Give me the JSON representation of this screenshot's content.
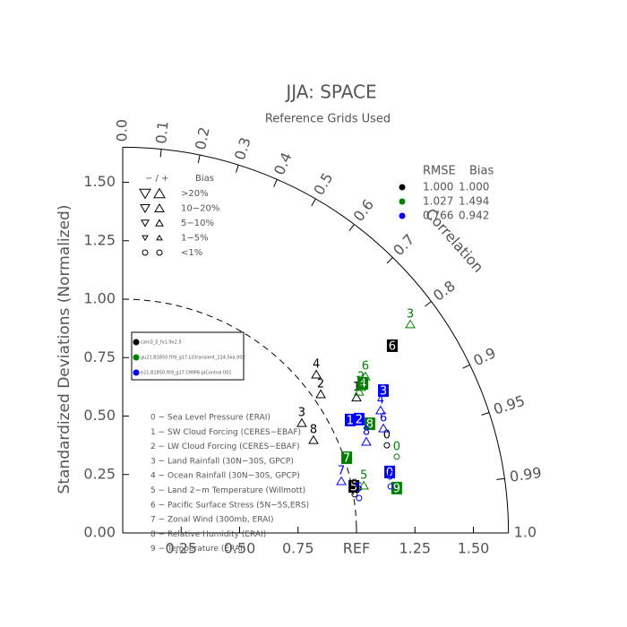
{
  "chart_data": {
    "type": "taylor",
    "title": "JJA: SPACE",
    "subtitle": "Reference Grids Used",
    "ylabel": "Standardized Deviations (Normalized)",
    "xlim": [
      0,
      1.65
    ],
    "ylim": [
      0,
      1.65
    ],
    "xticks": [
      0.25,
      {
        "value": 0.5,
        "label": "0.50"
      },
      0.75,
      {
        "value": 1,
        "label": "REF"
      },
      1.25,
      {
        "value": 1.5,
        "label": "1.50"
      }
    ],
    "yticks": [
      {
        "value": 0,
        "label": "0.00"
      },
      0.25,
      {
        "value": 0.5,
        "label": "0.50"
      },
      0.75,
      {
        "value": 1,
        "label": "1.00"
      },
      1.25,
      {
        "value": 1.5,
        "label": "1.50"
      }
    ],
    "correlation_label": "Correlation",
    "correlation_ticks": [
      {
        "value": 0,
        "label": "0.0"
      },
      0.1,
      0.2,
      0.3,
      0.4,
      0.5,
      0.6,
      0.7,
      0.8,
      0.9,
      0.95,
      0.99,
      {
        "value": 1,
        "label": "1.0"
      }
    ],
    "stats_header": [
      "RMSE",
      "Bias"
    ],
    "bias_legend": {
      "header": [
        "− / +",
        "Bias"
      ],
      "rows": [
        ">20%",
        "10−20%",
        "5−10%",
        "1−5%",
        "<1%"
      ]
    },
    "index": [
      "0 − Sea Level Pressure (ERAI)",
      "1 − SW Cloud Forcing (CERES−EBAF)",
      "2 − LW Cloud Forcing (CERES−EBAF)",
      "3 − Land Rainfall (30N−30S, GPCP)",
      "4 − Ocean Rainfall (30N−30S, GPCP)",
      "5 − Land 2−m Temperature (Willmott)",
      "6 − Pacific Surface Stress (5N−5S,ERS)",
      "7 − Zonal Wind (300mb, ERAI)",
      "8 − Relative Humidity (ERAI)",
      "9 − Temperature (ERAI)"
    ],
    "series": [
      {
        "name": "cam3_5_fv1.9x2.5",
        "color": "#000000",
        "rmse": "1.000",
        "bias": "1.000",
        "points": [
          {
            "label": "6",
            "marker": "box",
            "x": 1.153,
            "y": 0.801
          },
          {
            "label": "4",
            "marker": "triangle",
            "x": 0.828,
            "y": 0.678
          },
          {
            "label": "2",
            "marker": "triangle",
            "x": 0.847,
            "y": 0.594
          },
          {
            "label": "3",
            "marker": "triangle",
            "x": 0.766,
            "y": 0.471
          },
          {
            "label": "8",
            "marker": "triangle",
            "x": 0.816,
            "y": 0.398
          },
          {
            "label": "1",
            "marker": "triangle",
            "x": 1.0,
            "y": 0.58
          },
          {
            "label": "5",
            "marker": "box",
            "x": 0.989,
            "y": 0.199
          },
          {
            "label": "9",
            "marker": "circle",
            "x": 0.992,
            "y": 0.165
          },
          {
            "label": "0",
            "marker": "circle",
            "x": 1.13,
            "y": 0.375
          }
        ]
      },
      {
        "name": "gu21.B1850.f09_g17.LGtransient_124.5ka.002",
        "color": "#008000",
        "rmse": "1.027",
        "bias": "1.494",
        "points": [
          {
            "label": "3",
            "marker": "triangle",
            "x": 1.23,
            "y": 0.893
          },
          {
            "label": "6",
            "marker": "triangle",
            "x": 1.038,
            "y": 0.67
          },
          {
            "label": "4",
            "marker": "box",
            "x": 1.027,
            "y": 0.64
          },
          {
            "label": "2",
            "marker": "triangle",
            "x": 1.019,
            "y": 0.625
          },
          {
            "label": "1",
            "marker": "triangle",
            "x": 1.011,
            "y": 0.605
          },
          {
            "label": "7",
            "marker": "box",
            "x": 0.958,
            "y": 0.322
          },
          {
            "label": "8",
            "marker": "box",
            "x": 1.057,
            "y": 0.467
          },
          {
            "label": "0",
            "marker": "circle",
            "x": 1.172,
            "y": 0.326
          },
          {
            "label": "9",
            "marker": "box",
            "x": 1.172,
            "y": 0.192
          },
          {
            "label": "5",
            "marker": "triangle",
            "x": 1.031,
            "y": 0.203
          }
        ]
      },
      {
        "name": "e21.B1850.f09_g17.CMIP6-piControl.001",
        "color": "#0000ff",
        "rmse": "0.766",
        "bias": "0.942",
        "points": [
          {
            "label": "3",
            "marker": "box",
            "x": 1.115,
            "y": 0.609
          },
          {
            "label": "4",
            "marker": "triangle",
            "x": 1.103,
            "y": 0.525
          },
          {
            "label": "6",
            "marker": "triangle",
            "x": 1.115,
            "y": 0.448
          },
          {
            "label": "1",
            "marker": "box",
            "x": 0.973,
            "y": 0.483
          },
          {
            "label": "2",
            "marker": "box",
            "x": 1.011,
            "y": 0.487
          },
          {
            "label": "8",
            "marker": "triangle",
            "x": 1.042,
            "y": 0.391
          },
          {
            "label": "0",
            "marker": "box",
            "x": 1.142,
            "y": 0.261
          },
          {
            "label": "9",
            "marker": "circle",
            "x": 1.146,
            "y": 0.199
          },
          {
            "label": "7",
            "marker": "triangle",
            "x": 0.935,
            "y": 0.222
          },
          {
            "label": "5",
            "marker": "circle",
            "x": 1.011,
            "y": 0.149
          }
        ]
      }
    ]
  }
}
